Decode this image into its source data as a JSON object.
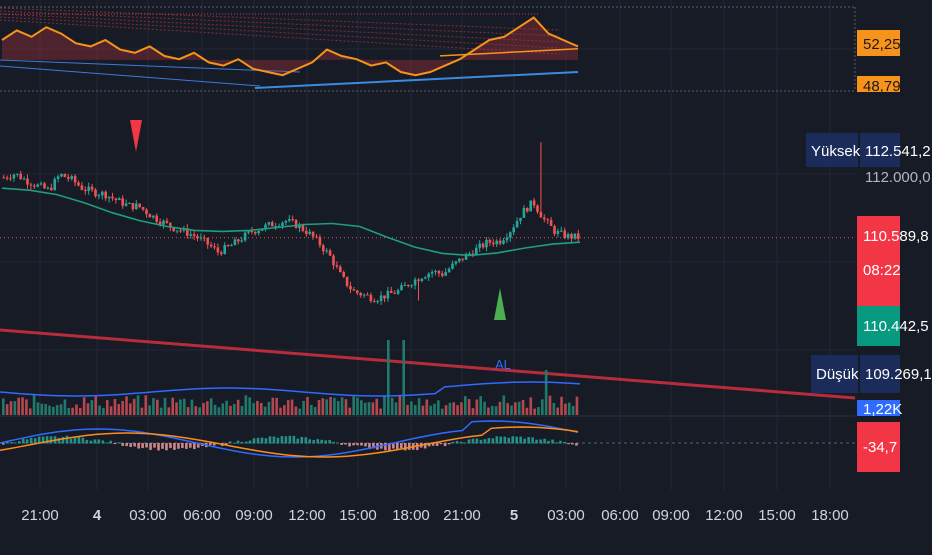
{
  "colors": {
    "bg": "#171b26",
    "grid": "#232734",
    "up": "#26a69a",
    "down": "#ef5350",
    "rsi": "#f7931a",
    "ma": "#1f9d7f",
    "trend": "#d32f3f",
    "blue": "#2f6bff",
    "orange": "#ff8c1a",
    "navy": "#1b2b5a"
  },
  "time_axis": {
    "labels": [
      "21:00",
      "4",
      "03:00",
      "06:00",
      "09:00",
      "12:00",
      "15:00",
      "18:00",
      "21:00",
      "5",
      "03:00",
      "06:00",
      "09:00",
      "12:00",
      "15:00",
      "18:00"
    ],
    "bold": [
      false,
      true,
      false,
      false,
      false,
      false,
      false,
      false,
      false,
      true,
      false,
      false,
      false,
      false,
      false,
      false
    ]
  },
  "rsi_panel": {
    "value_label": "52,25",
    "level_label": "48,79"
  },
  "price_panel": {
    "high_tag": "Yüksek",
    "high_value": "112.541,2",
    "grid_label": "112.000,0",
    "last_price": "110.589,8",
    "countdown": "08:22",
    "bid_value": "110.442,5",
    "low_tag": "Düşük",
    "low_value": "109.269,1",
    "signal_buy": "AL"
  },
  "volume_panel": {
    "value_label": "1,22K"
  },
  "macd_panel": {
    "value_label": "-34,7"
  },
  "chart_data": {
    "type": "candlestick",
    "price_axis": {
      "ylim": [
        108300,
        113400
      ]
    },
    "last_price": 110589.8,
    "high": 112541.2,
    "low": 109269.1,
    "close_path": [
      111820,
      111900,
      111760,
      111650,
      111560,
      111880,
      111780,
      111600,
      111520,
      111480,
      111360,
      111250,
      111230,
      111060,
      110920,
      110800,
      110720,
      110620,
      110480,
      110300,
      110400,
      110560,
      110720,
      110800,
      110880,
      110940,
      110850,
      110700,
      110480,
      110200,
      109780,
      109500,
      109420,
      109350,
      109420,
      109500,
      109660,
      109800,
      109900,
      109850,
      110050,
      110220,
      110360,
      110500,
      110520,
      110750,
      111100,
      111320,
      110950,
      110700,
      110620,
      110600
    ],
    "ma_values": [
      111600,
      111560,
      111470,
      111300,
      111100,
      110940,
      110820,
      110740,
      110720,
      110740,
      110800,
      110860,
      110880,
      110820,
      110600,
      110400,
      110270,
      110230,
      110280,
      110380,
      110460,
      110500
    ],
    "rsi": {
      "levels": [
        52.25,
        48.79
      ],
      "ylim": [
        40,
        65
      ]
    },
    "volume": {
      "value": 1220
    },
    "macd": {
      "value": -34.7
    },
    "signals": [
      {
        "type": "sell",
        "at": "03:00"
      },
      {
        "type": "buy",
        "label": "AL",
        "at": "00:00"
      }
    ]
  }
}
